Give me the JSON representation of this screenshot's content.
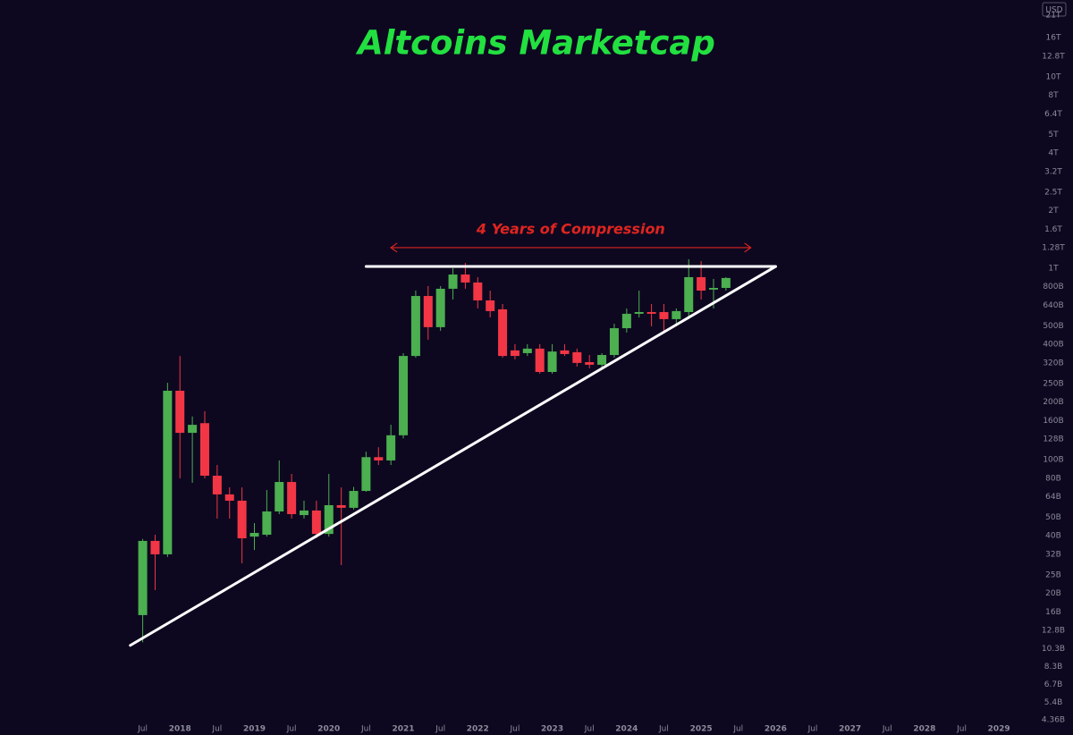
{
  "chart_data": {
    "type": "candlestick",
    "title": "Altcoins Marketcap",
    "currency_label": "USD",
    "log_scale": true,
    "grid": false,
    "up_color": "#4caf50",
    "down_color": "#f23645",
    "background": "#0d0820",
    "x": [
      "2017-07",
      "2017-09",
      "2017-11",
      "2018-01",
      "2018-03",
      "2018-05",
      "2018-07",
      "2018-09",
      "2018-11",
      "2019-01",
      "2019-03",
      "2019-05",
      "2019-07",
      "2019-09",
      "2019-11",
      "2020-01",
      "2020-03",
      "2020-05",
      "2020-07",
      "2020-09",
      "2020-11",
      "2021-01",
      "2021-03",
      "2021-05",
      "2021-07",
      "2021-09",
      "2021-11",
      "2022-01",
      "2022-03",
      "2022-05",
      "2022-07",
      "2022-09",
      "2022-11",
      "2023-01",
      "2023-03",
      "2023-05",
      "2023-07",
      "2023-09",
      "2023-11",
      "2024-01",
      "2024-03",
      "2024-05",
      "2024-07",
      "2024-09",
      "2024-11",
      "2025-01",
      "2025-03",
      "2025-05"
    ],
    "open": [
      15.4,
      37.6,
      32,
      229,
      138,
      155,
      82.4,
      65.8,
      61,
      39.6,
      40.5,
      53.6,
      76.4,
      51.3,
      54.2,
      40.9,
      57.8,
      56,
      68.6,
      103,
      99,
      134,
      348,
      716,
      492,
      781,
      927,
      842,
      679,
      610,
      372,
      360,
      380,
      287,
      372,
      364,
      323,
      313,
      352,
      486,
      578,
      590,
      590,
      542,
      590,
      898,
      773,
      789
    ],
    "high": [
      38.5,
      40.5,
      252,
      348,
      168,
      179,
      93.7,
      71.6,
      71.6,
      46.6,
      69.4,
      99,
      84.2,
      61,
      61,
      84.2,
      71.6,
      72,
      110,
      116,
      152,
      360,
      764,
      807,
      807,
      1000,
      1066,
      898,
      764,
      650,
      401,
      401,
      401,
      401,
      401,
      380,
      352,
      360,
      513,
      616,
      764,
      650,
      650,
      616,
      1114,
      1089,
      879,
      898
    ],
    "low": [
      11.1,
      20.8,
      31,
      79.8,
      75.6,
      79.8,
      49.2,
      49.2,
      28.7,
      33.7,
      39.6,
      51.9,
      49.2,
      49.2,
      38.8,
      39.6,
      28.1,
      54.8,
      67.9,
      93.7,
      93.7,
      129,
      341,
      423,
      471,
      686,
      781,
      616,
      553,
      341,
      334,
      348,
      281,
      281,
      348,
      306,
      300,
      300,
      341,
      461,
      553,
      497,
      461,
      497,
      542,
      686,
      616,
      764
    ],
    "close": [
      37.6,
      32,
      229,
      138,
      152,
      82.4,
      65.8,
      61,
      38.8,
      41.4,
      53.6,
      76.4,
      51.9,
      54.2,
      40.9,
      57.8,
      56,
      68.6,
      103,
      99,
      134,
      348,
      716,
      492,
      781,
      927,
      842,
      679,
      597,
      348,
      348,
      380,
      287,
      367,
      356,
      320,
      313,
      352,
      486,
      578,
      590,
      578,
      542,
      597,
      898,
      764,
      789,
      889
    ],
    "ylim": [
      3.64,
      25200
    ],
    "yticks": [
      {
        "value": 21000,
        "label": "21T"
      },
      {
        "value": 16000,
        "label": "16T"
      },
      {
        "value": 12800,
        "label": "12.8T"
      },
      {
        "value": 10000,
        "label": "10T"
      },
      {
        "value": 8000,
        "label": "8T"
      },
      {
        "value": 6400,
        "label": "6.4T"
      },
      {
        "value": 5000,
        "label": "5T"
      },
      {
        "value": 4000,
        "label": "4T"
      },
      {
        "value": 3200,
        "label": "3.2T"
      },
      {
        "value": 2500,
        "label": "2.5T"
      },
      {
        "value": 2000,
        "label": "2T"
      },
      {
        "value": 1600,
        "label": "1.6T"
      },
      {
        "value": 1280,
        "label": "1.28T"
      },
      {
        "value": 1000,
        "label": "1T"
      },
      {
        "value": 800,
        "label": "800B"
      },
      {
        "value": 640,
        "label": "640B"
      },
      {
        "value": 500,
        "label": "500B"
      },
      {
        "value": 400,
        "label": "400B"
      },
      {
        "value": 320,
        "label": "320B"
      },
      {
        "value": 250,
        "label": "250B"
      },
      {
        "value": 200,
        "label": "200B"
      },
      {
        "value": 160,
        "label": "160B"
      },
      {
        "value": 128,
        "label": "128B"
      },
      {
        "value": 100,
        "label": "100B"
      },
      {
        "value": 80,
        "label": "80B"
      },
      {
        "value": 64,
        "label": "64B"
      },
      {
        "value": 50,
        "label": "50B"
      },
      {
        "value": 40,
        "label": "40B"
      },
      {
        "value": 32,
        "label": "32B"
      },
      {
        "value": 25,
        "label": "25B"
      },
      {
        "value": 20,
        "label": "20B"
      },
      {
        "value": 16,
        "label": "16B"
      },
      {
        "value": 12.8,
        "label": "12.8B"
      },
      {
        "value": 10.3,
        "label": "10.3B"
      },
      {
        "value": 8.3,
        "label": "8.3B"
      },
      {
        "value": 6.7,
        "label": "6.7B"
      },
      {
        "value": 5.4,
        "label": "5.4B"
      },
      {
        "value": 4.36,
        "label": "4.36B"
      }
    ],
    "xlim": [
      "2015-08",
      "2029-04"
    ],
    "xticks": [
      {
        "value": "2017-07",
        "label": "Jul"
      },
      {
        "value": "2018-01",
        "label": "2018"
      },
      {
        "value": "2018-07",
        "label": "Jul"
      },
      {
        "value": "2019-01",
        "label": "2019"
      },
      {
        "value": "2019-07",
        "label": "Jul"
      },
      {
        "value": "2020-01",
        "label": "2020"
      },
      {
        "value": "2020-07",
        "label": "Jul"
      },
      {
        "value": "2021-01",
        "label": "2021"
      },
      {
        "value": "2021-07",
        "label": "Jul"
      },
      {
        "value": "2022-01",
        "label": "2022"
      },
      {
        "value": "2022-07",
        "label": "Jul"
      },
      {
        "value": "2023-01",
        "label": "2023"
      },
      {
        "value": "2023-07",
        "label": "Jul"
      },
      {
        "value": "2024-01",
        "label": "2024"
      },
      {
        "value": "2024-07",
        "label": "Jul"
      },
      {
        "value": "2025-01",
        "label": "2025"
      },
      {
        "value": "2025-07",
        "label": "Jul"
      },
      {
        "value": "2026-01",
        "label": "2026"
      },
      {
        "value": "2026-07",
        "label": "Jul"
      },
      {
        "value": "2027-01",
        "label": "2027"
      },
      {
        "value": "2027-07",
        "label": "Jul"
      },
      {
        "value": "2028-01",
        "label": "2028"
      },
      {
        "value": "2028-07",
        "label": "Jul"
      },
      {
        "value": "2029-01",
        "label": "2029"
      }
    ],
    "trendlines": [
      {
        "x": [
          "2020-07",
          "2026-01"
        ],
        "y": [
          1021,
          1021
        ],
        "color": "#ffffff"
      },
      {
        "x": [
          "2017-05",
          "2026-01"
        ],
        "y": [
          10.7,
          1021
        ],
        "color": "#ffffff"
      }
    ],
    "annotations": [
      {
        "text": "4 Years of Compression",
        "x": [
          "2020-11",
          "2025-09"
        ],
        "y": 1281,
        "color": "#e0241f"
      }
    ]
  }
}
